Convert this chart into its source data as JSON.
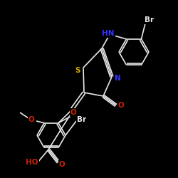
{
  "bg_color": "#000000",
  "bond_color": "#e8e8e8",
  "atom_colors": {
    "Br": "#e8e8e8",
    "S": "#ccaa00",
    "N": "#3333ff",
    "O": "#cc2200",
    "HN": "#3333ff",
    "HO": "#cc2200",
    "C": "#e8e8e8"
  },
  "lw": 1.2
}
